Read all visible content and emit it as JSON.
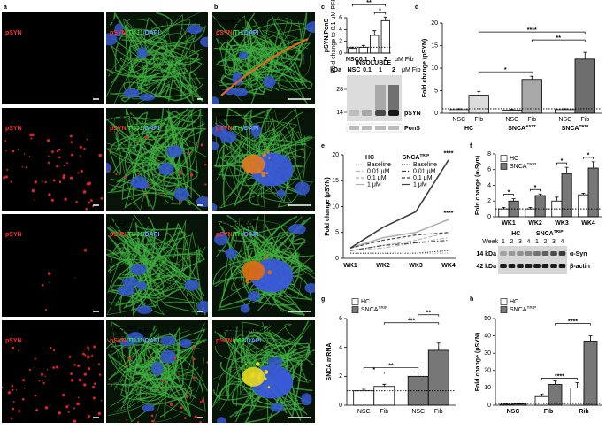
{
  "panel_labels": [
    "a",
    "b",
    "c",
    "d",
    "e",
    "f",
    "g",
    "h"
  ],
  "microscopy": {
    "a": [
      [
        {
          "title": {
            "base": "HC"
          },
          "stain": [
            "pSYN"
          ]
        },
        {
          "title": {
            "base": "HC"
          },
          "stain": [
            "pSYN",
            "/TUJ1",
            "/DAPI"
          ]
        }
      ],
      [
        {
          "title": {
            "base": "HC + Fib"
          },
          "stain": [
            "pSYN"
          ]
        },
        {
          "title": {
            "base": "HC + Fib"
          },
          "stain": [
            "pSYN",
            "/TUJ1",
            "/DAPI"
          ]
        }
      ],
      [
        {
          "title": {
            "base": "SNCA",
            "sup": "TRIP"
          },
          "stain": [
            "pSYN"
          ]
        },
        {
          "title": {
            "base": "SNCA",
            "sup": "TRIP"
          },
          "stain": [
            "pSYN",
            "/TUJ1",
            "/DAPI"
          ]
        }
      ],
      [
        {
          "title": {
            "base": "SNCA",
            "sup": "TRIP",
            "suffix": " + Fib"
          },
          "stain": [
            "pSYN"
          ]
        },
        {
          "title": {
            "base": "SNCA",
            "sup": "TRIP",
            "suffix": " + Fib"
          },
          "stain": [
            "pSYN",
            "/TUJ1",
            "/DAPI"
          ]
        }
      ]
    ],
    "b": [
      {
        "title": {
          "base": "Neuritic"
        },
        "stain": [
          "pSYN",
          "/TH",
          "/DAPI"
        ]
      },
      {
        "title": {
          "base": "Speckled"
        },
        "stain": [
          "pSYN",
          "/TH",
          "/DAPI"
        ]
      },
      {
        "title": {
          "base": "Inclusion body"
        },
        "stain": [
          "pSYN",
          "/TH",
          "/DAPI"
        ]
      },
      {
        "title": {
          "base": "p62 co-localisation"
        },
        "stain": [
          "pSYN",
          "/p62",
          "/DAPI"
        ]
      }
    ]
  },
  "chart_data": [
    {
      "type": "bar",
      "ylabel": "pSYN/PonS",
      "ylabel_sub": "Fold change to 0.1 μM PFF",
      "categories": [
        "NSC",
        "0.1",
        "1",
        "2"
      ],
      "xlabel": "μM Fib",
      "series": [
        {
          "values": [
            0.8,
            1,
            3,
            5.5
          ],
          "errors": [
            0.2,
            0.3,
            0.8,
            0.6
          ],
          "color": "#ffffff"
        }
      ],
      "ylim": [
        0,
        6
      ],
      "yticks": [
        0,
        2,
        4,
        6
      ],
      "baseline": 1,
      "annotations": [
        {
          "text": "*",
          "between": [
            [
              0,
              2
            ],
            [
              0,
              3
            ]
          ]
        },
        {
          "text": "**",
          "between": [
            [
              0,
              0
            ],
            [
              0,
              3
            ]
          ]
        }
      ],
      "subtitle": "INSOLUBLE",
      "blot": {
        "header": "kDa",
        "lanes": [
          "NSC",
          "0.1",
          "1",
          "2"
        ],
        "unit": "μM Fib",
        "markers": [
          28,
          14
        ],
        "bands": [
          "pSYN",
          "PonS"
        ]
      }
    },
    {
      "type": "bar",
      "ylabel": "Fold change (pSYN)",
      "categories": [
        "NSC",
        "Fib"
      ],
      "series": [
        {
          "name": {
            "base": "HC"
          },
          "values": [
            0.8,
            4
          ],
          "errors": [
            0.2,
            0.8
          ],
          "colors": [
            "#ffffff",
            "#dcdcdc"
          ]
        },
        {
          "name": {
            "base": "SNCA",
            "sup": "A53T"
          },
          "values": [
            0.7,
            7.5
          ],
          "errors": [
            0.2,
            0.7
          ],
          "colors": [
            "#ffffff",
            "#a8a8a8"
          ]
        },
        {
          "name": {
            "base": "SNCA",
            "sup": "TRIP"
          },
          "values": [
            0.8,
            12
          ],
          "errors": [
            0.2,
            1.5
          ],
          "colors": [
            "#ffffff",
            "#6e6e6e"
          ]
        }
      ],
      "ylim": [
        0,
        20
      ],
      "yticks": [
        0,
        5,
        10,
        15,
        20
      ],
      "baseline": 1,
      "annotations": [
        {
          "text": "*",
          "between": [
            [
              0,
              1
            ],
            [
              1,
              1
            ]
          ]
        },
        {
          "text": "**",
          "between": [
            [
              1,
              1
            ],
            [
              2,
              1
            ]
          ]
        },
        {
          "text": "****",
          "between": [
            [
              0,
              1
            ],
            [
              2,
              1
            ]
          ]
        }
      ]
    },
    {
      "type": "line",
      "ylabel": "Fold change (pSYN)",
      "categories": [
        "WK1",
        "WK2",
        "WK3",
        "WK4"
      ],
      "ylim": [
        0,
        20
      ],
      "yticks": [
        0,
        5,
        10,
        15,
        20
      ],
      "legend_groups": [
        {
          "base": "HC"
        },
        {
          "base": "SNCA",
          "sup": "TRIP"
        }
      ],
      "series": [
        {
          "name": "Baseline",
          "legend_group": 0,
          "color": "#b0b0b0",
          "dash": "dotted",
          "values": [
            1,
            1,
            1,
            1
          ]
        },
        {
          "name": "0.01 μM",
          "legend_group": 0,
          "color": "#b0b0b0",
          "dash": "dashdot",
          "values": [
            1.5,
            2,
            3,
            4
          ]
        },
        {
          "name": "0.1 μM",
          "legend_group": 0,
          "color": "#b0b0b0",
          "dash": "dashed",
          "values": [
            1.5,
            2.5,
            3.5,
            5
          ]
        },
        {
          "name": "1 μM",
          "legend_group": 0,
          "color": "#b0b0b0",
          "dash": "solid",
          "values": [
            2,
            4,
            5,
            7.5
          ]
        },
        {
          "name": "Baseline",
          "legend_group": 1,
          "color": "#404040",
          "dash": "dotted",
          "values": [
            1,
            1,
            1,
            1.5
          ]
        },
        {
          "name": "0.01 μM",
          "legend_group": 1,
          "color": "#404040",
          "dash": "dashdot",
          "values": [
            1.5,
            2.5,
            3,
            3.5
          ]
        },
        {
          "name": "0.1 μM",
          "legend_group": 1,
          "color": "#404040",
          "dash": "dashed",
          "values": [
            2,
            3.5,
            4.5,
            5
          ]
        },
        {
          "name": "1 μM",
          "legend_group": 1,
          "color": "#404040",
          "dash": "solid",
          "values": [
            2,
            6,
            9,
            19
          ]
        }
      ],
      "annotations": [
        {
          "text": "****",
          "series": 7,
          "index": 3
        },
        {
          "text": "****",
          "series": 3,
          "index": 3
        }
      ]
    },
    {
      "type": "bar",
      "ylabel": "Fold change (α-Syn)",
      "categories": [
        "WK1",
        "WK2",
        "WK3",
        "WK4"
      ],
      "series": [
        {
          "name": {
            "base": "HC"
          },
          "values": [
            1,
            1,
            2,
            2.8
          ],
          "errors": [
            0.2,
            0.2,
            0.5,
            0.2
          ],
          "color": "#ffffff"
        },
        {
          "name": {
            "base": "SNCA",
            "sup": "TRIP"
          },
          "values": [
            2,
            2.7,
            5.5,
            6.2
          ],
          "errors": [
            0.3,
            0.2,
            0.8,
            0.8
          ],
          "color": "#777777"
        }
      ],
      "ylim": [
        0,
        8
      ],
      "yticks": [
        0,
        2,
        4,
        6,
        8
      ],
      "baseline": 1,
      "annotations": [
        {
          "text": "*",
          "between": [
            [
              0,
              0
            ],
            [
              1,
              0
            ]
          ]
        },
        {
          "text": "*",
          "between": [
            [
              0,
              1
            ],
            [
              1,
              1
            ]
          ]
        },
        {
          "text": "*",
          "between": [
            [
              0,
              2
            ],
            [
              1,
              2
            ]
          ]
        },
        {
          "text": "*",
          "between": [
            [
              0,
              3
            ],
            [
              1,
              3
            ]
          ]
        }
      ],
      "blot": {
        "week_label": "Week",
        "groups": [
          {
            "base": "HC"
          },
          {
            "base": "SNCA",
            "sup": "TRIP"
          }
        ],
        "lanes": [
          "1",
          "2",
          "3",
          "4"
        ],
        "markers": [
          "14 kDa",
          "42 kDa"
        ],
        "bands": [
          "α-Syn",
          "β-actin"
        ]
      }
    },
    {
      "type": "bar",
      "ylabel": "SNCA mRNA",
      "categories": [
        "NSC",
        "Fib"
      ],
      "series": [
        {
          "name": {
            "base": "HC"
          },
          "values": [
            1.0,
            1.3
          ],
          "errors": [
            0.1,
            0.15
          ],
          "color": "#ffffff"
        },
        {
          "name": {
            "base": "SNCA",
            "sup": "TRIP"
          },
          "values": [
            2.0,
            3.8
          ],
          "errors": [
            0.3,
            0.5
          ],
          "color": "#777777"
        }
      ],
      "ylim": [
        0,
        6
      ],
      "yticks": [
        0,
        2,
        4,
        6
      ],
      "baseline": 1,
      "annotations": [
        {
          "text": "**",
          "between": [
            [
              0,
              0
            ],
            [
              1,
              0
            ]
          ]
        },
        {
          "text": "*",
          "between": [
            [
              0,
              0
            ],
            [
              0,
              1
            ]
          ]
        },
        {
          "text": "***",
          "between": [
            [
              0,
              1
            ],
            [
              1,
              1
            ]
          ]
        },
        {
          "text": "**",
          "between": [
            [
              1,
              0
            ],
            [
              1,
              1
            ]
          ]
        }
      ]
    },
    {
      "type": "bar",
      "ylabel": "Fold change (pSYN)",
      "categories": [
        "NSC",
        "Fib",
        "Rib"
      ],
      "series": [
        {
          "name": {
            "base": "HC"
          },
          "values": [
            0.5,
            5,
            10
          ],
          "errors": [
            0.2,
            1.5,
            3
          ],
          "color": "#ffffff"
        },
        {
          "name": {
            "base": "SNCA",
            "sup": "TRIP"
          },
          "values": [
            0.7,
            12,
            37
          ],
          "errors": [
            0.2,
            2,
            3
          ],
          "color": "#777777"
        }
      ],
      "ylim": [
        0,
        50
      ],
      "yticks": [
        0,
        10,
        20,
        30,
        40,
        50
      ],
      "baseline": 1,
      "annotations": [
        {
          "text": "****",
          "between": [
            [
              0,
              1
            ],
            [
              0,
              2
            ]
          ]
        },
        {
          "text": "****",
          "between": [
            [
              1,
              1
            ],
            [
              1,
              2
            ]
          ]
        }
      ]
    }
  ]
}
